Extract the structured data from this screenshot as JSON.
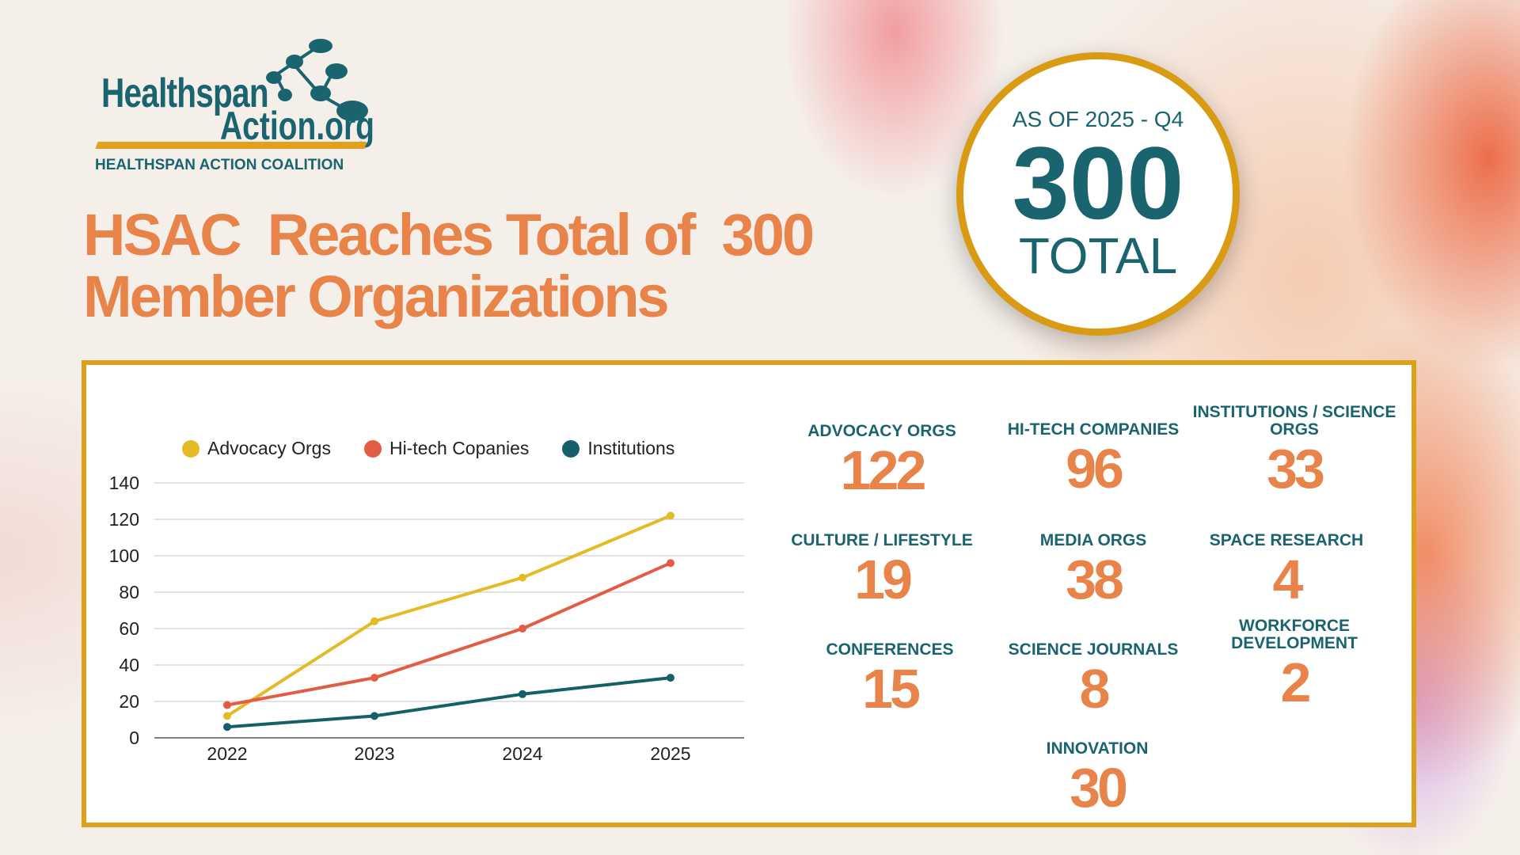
{
  "logo": {
    "line1": "Healthspan",
    "line2": "Action.org",
    "subtitle": "HEALTHSPAN ACTION COALITION"
  },
  "headline": {
    "line1": "HSAC  Reaches Total of  300",
    "line2": "Member Organizations"
  },
  "badge": {
    "as_of": "AS OF 2025 - Q4",
    "number": "300",
    "label": "TOTAL"
  },
  "chart_data": {
    "type": "line",
    "categories": [
      "2022",
      "2023",
      "2024",
      "2025"
    ],
    "series": [
      {
        "name": "Advocacy Orgs",
        "color": "#e4bb27",
        "values": [
          12,
          64,
          88,
          122
        ]
      },
      {
        "name": "Hi-tech Copanies",
        "color": "#e35d45",
        "values": [
          18,
          33,
          60,
          96
        ]
      },
      {
        "name": "Institutions",
        "color": "#155f6b",
        "values": [
          6,
          12,
          24,
          33
        ]
      }
    ],
    "yticks": [
      "0",
      "20",
      "40",
      "60",
      "80",
      "100",
      "120",
      "140"
    ],
    "ylim": [
      0,
      140
    ],
    "grid": true,
    "legend": "top"
  },
  "stats": [
    {
      "label": "ADVOCACY ORGS",
      "value": "122"
    },
    {
      "label": "HI-TECH COMPANIES",
      "value": "96"
    },
    {
      "label": "INSTITUTIONS / SCIENCE ORGS",
      "value": "33"
    },
    {
      "label": "CULTURE / LIFESTYLE",
      "value": "19"
    },
    {
      "label": "MEDIA ORGS",
      "value": "38"
    },
    {
      "label": "SPACE RESEARCH",
      "value": "4"
    },
    {
      "label": "CONFERENCES",
      "value": "15"
    },
    {
      "label": "SCIENCE JOURNALS",
      "value": "8"
    },
    {
      "label": "WORKFORCE DEVELOPMENT",
      "value": "2"
    },
    {
      "label": "INNOVATION",
      "value": "30"
    }
  ]
}
